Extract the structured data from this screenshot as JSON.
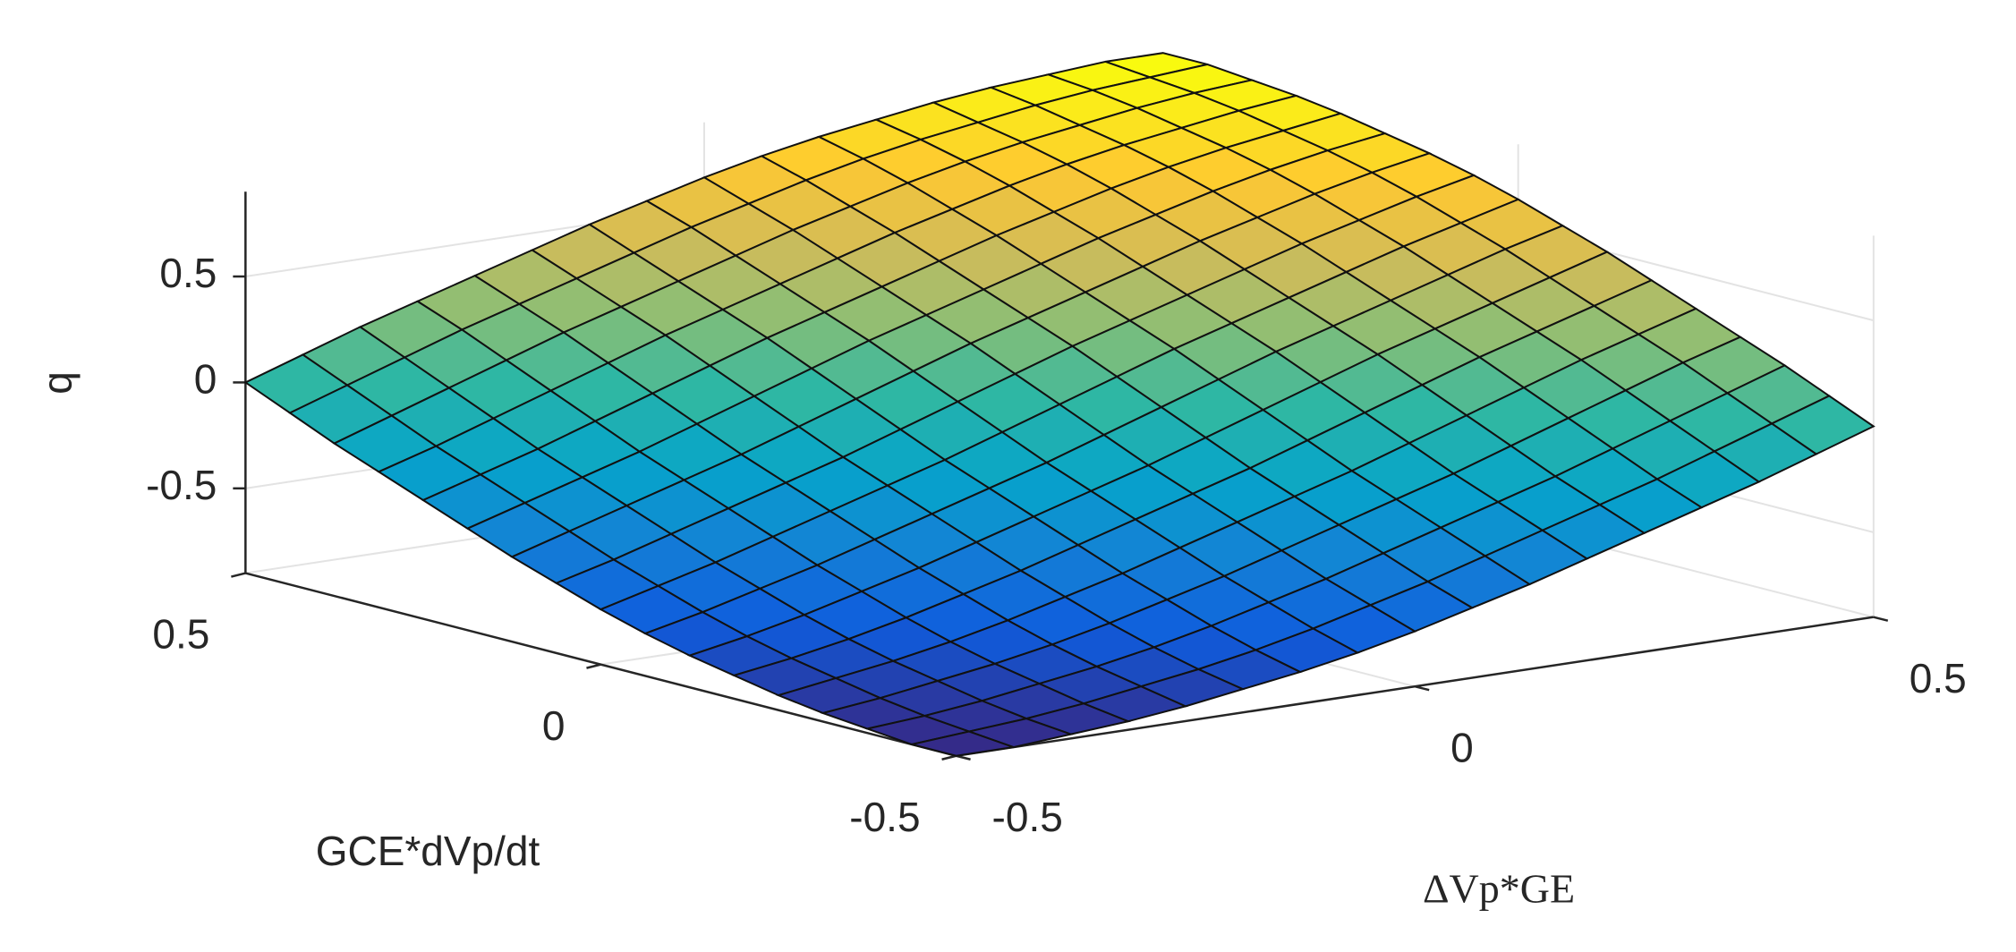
{
  "chart_data": {
    "type": "surface",
    "xlabel": "ΔVp*GE",
    "ylabel": "GCE*dVp/dt",
    "zlabel": "q",
    "x": [
      -0.5,
      -0.4375,
      -0.375,
      -0.3125,
      -0.25,
      -0.1875,
      -0.125,
      -0.0625,
      0,
      0.0625,
      0.125,
      0.1875,
      0.25,
      0.3125,
      0.375,
      0.4375,
      0.5
    ],
    "y": [
      -0.5,
      -0.4375,
      -0.375,
      -0.3125,
      -0.25,
      -0.1875,
      -0.125,
      -0.0625,
      0,
      0.0625,
      0.125,
      0.1875,
      0.25,
      0.3125,
      0.375,
      0.4375,
      0.5
    ],
    "z": [
      [
        -0.9,
        -0.9,
        -0.88,
        -0.86,
        -0.83,
        -0.79,
        -0.75,
        -0.7,
        -0.64,
        -0.57,
        -0.5,
        -0.42,
        -0.34,
        -0.26,
        -0.18,
        -0.09,
        0
      ],
      [
        -0.9,
        -0.88,
        -0.86,
        -0.83,
        -0.79,
        -0.75,
        -0.7,
        -0.64,
        -0.57,
        -0.5,
        -0.42,
        -0.34,
        -0.26,
        -0.18,
        -0.09,
        0,
        0.09
      ],
      [
        -0.88,
        -0.86,
        -0.83,
        -0.79,
        -0.75,
        -0.7,
        -0.64,
        -0.57,
        -0.5,
        -0.42,
        -0.34,
        -0.26,
        -0.18,
        -0.09,
        0,
        0.09,
        0.18
      ],
      [
        -0.86,
        -0.83,
        -0.79,
        -0.75,
        -0.7,
        -0.64,
        -0.57,
        -0.5,
        -0.42,
        -0.34,
        -0.26,
        -0.18,
        -0.09,
        0,
        0.09,
        0.18,
        0.26
      ],
      [
        -0.83,
        -0.79,
        -0.75,
        -0.7,
        -0.64,
        -0.57,
        -0.5,
        -0.42,
        -0.34,
        -0.26,
        -0.18,
        -0.09,
        0,
        0.09,
        0.18,
        0.26,
        0.34
      ],
      [
        -0.79,
        -0.75,
        -0.7,
        -0.64,
        -0.57,
        -0.5,
        -0.42,
        -0.34,
        -0.26,
        -0.18,
        -0.09,
        0,
        0.09,
        0.18,
        0.26,
        0.34,
        0.42
      ],
      [
        -0.75,
        -0.7,
        -0.64,
        -0.57,
        -0.5,
        -0.42,
        -0.34,
        -0.26,
        -0.18,
        -0.09,
        0,
        0.09,
        0.18,
        0.26,
        0.34,
        0.42,
        0.5
      ],
      [
        -0.7,
        -0.64,
        -0.57,
        -0.5,
        -0.42,
        -0.34,
        -0.26,
        -0.18,
        -0.09,
        0,
        0.09,
        0.18,
        0.26,
        0.34,
        0.42,
        0.5,
        0.57
      ],
      [
        -0.64,
        -0.57,
        -0.5,
        -0.42,
        -0.34,
        -0.26,
        -0.18,
        -0.09,
        0,
        0.09,
        0.18,
        0.26,
        0.34,
        0.42,
        0.5,
        0.57,
        0.64
      ],
      [
        -0.57,
        -0.5,
        -0.42,
        -0.34,
        -0.26,
        -0.18,
        -0.09,
        0,
        0.09,
        0.18,
        0.26,
        0.34,
        0.42,
        0.5,
        0.57,
        0.64,
        0.7
      ],
      [
        -0.5,
        -0.42,
        -0.34,
        -0.26,
        -0.18,
        -0.09,
        0,
        0.09,
        0.18,
        0.26,
        0.34,
        0.42,
        0.5,
        0.57,
        0.64,
        0.7,
        0.75
      ],
      [
        -0.42,
        -0.34,
        -0.26,
        -0.18,
        -0.09,
        0,
        0.09,
        0.18,
        0.26,
        0.34,
        0.42,
        0.5,
        0.57,
        0.64,
        0.7,
        0.75,
        0.79
      ],
      [
        -0.34,
        -0.26,
        -0.18,
        -0.09,
        0,
        0.09,
        0.18,
        0.26,
        0.34,
        0.42,
        0.5,
        0.57,
        0.64,
        0.7,
        0.75,
        0.79,
        0.83
      ],
      [
        -0.26,
        -0.18,
        -0.09,
        0,
        0.09,
        0.18,
        0.26,
        0.34,
        0.42,
        0.5,
        0.57,
        0.64,
        0.7,
        0.75,
        0.79,
        0.83,
        0.86
      ],
      [
        -0.18,
        -0.09,
        0,
        0.09,
        0.18,
        0.26,
        0.34,
        0.42,
        0.5,
        0.57,
        0.64,
        0.7,
        0.75,
        0.79,
        0.83,
        0.86,
        0.88
      ],
      [
        -0.09,
        0,
        0.09,
        0.18,
        0.26,
        0.34,
        0.42,
        0.5,
        0.57,
        0.64,
        0.7,
        0.75,
        0.79,
        0.83,
        0.86,
        0.88,
        0.9
      ],
      [
        0,
        0.09,
        0.18,
        0.26,
        0.34,
        0.42,
        0.5,
        0.57,
        0.64,
        0.7,
        0.75,
        0.79,
        0.83,
        0.86,
        0.88,
        0.9,
        0.9
      ]
    ],
    "xlim": [
      -0.5,
      0.5
    ],
    "ylim": [
      -0.5,
      0.5
    ],
    "zlim": [
      -0.9,
      0.9
    ],
    "xticks": [
      -0.5,
      0,
      0.5
    ],
    "yticks": [
      -0.5,
      0,
      0.5
    ],
    "zticks": [
      -0.5,
      0,
      0.5
    ],
    "grid": true,
    "colormap": [
      "#352a87",
      "#0f5cdd",
      "#1481d6",
      "#06a4ca",
      "#2eb7a4",
      "#87bf77",
      "#d1bb59",
      "#fec832",
      "#f9fb0e"
    ]
  }
}
